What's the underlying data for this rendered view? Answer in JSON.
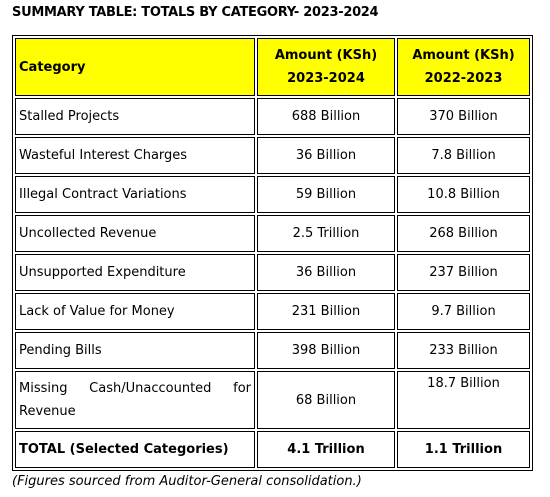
{
  "title": "SUMMARY TABLE: TOTALS BY CATEGORY- 2023-2024",
  "table": {
    "header": [
      [
        "Category"
      ],
      [
        "Amount (KSh)",
        "2023-2024"
      ],
      [
        "Amount (KSh)",
        "2022-2023"
      ]
    ],
    "rows": [
      [
        "Stalled Projects",
        "688 Billion",
        "370 Billion"
      ],
      [
        "Wasteful Interest Charges",
        "36 Billion",
        "7.8 Billion"
      ],
      [
        "Illegal Contract Variations",
        "59 Billion",
        "10.8 Billion"
      ],
      [
        "Uncollected Revenue",
        "2.5 Trillion",
        "268 Billion"
      ],
      [
        "Unsupported Expenditure",
        "36 Billion",
        "237 Billion"
      ],
      [
        "Lack of Value for Money",
        "231 Billion",
        "9.7 Billion"
      ],
      [
        "Pending Bills",
        "398 Billion",
        "233 Billion"
      ],
      [
        "Missing Cash/Unaccounted for Revenue",
        "68 Billion",
        "18.7 Billion"
      ]
    ],
    "total": [
      "TOTAL (Selected Categories)",
      "4.1 Trillion",
      "1.1 Trillion"
    ]
  },
  "footnote": "(Figures sourced from Auditor-General consolidation.)"
}
